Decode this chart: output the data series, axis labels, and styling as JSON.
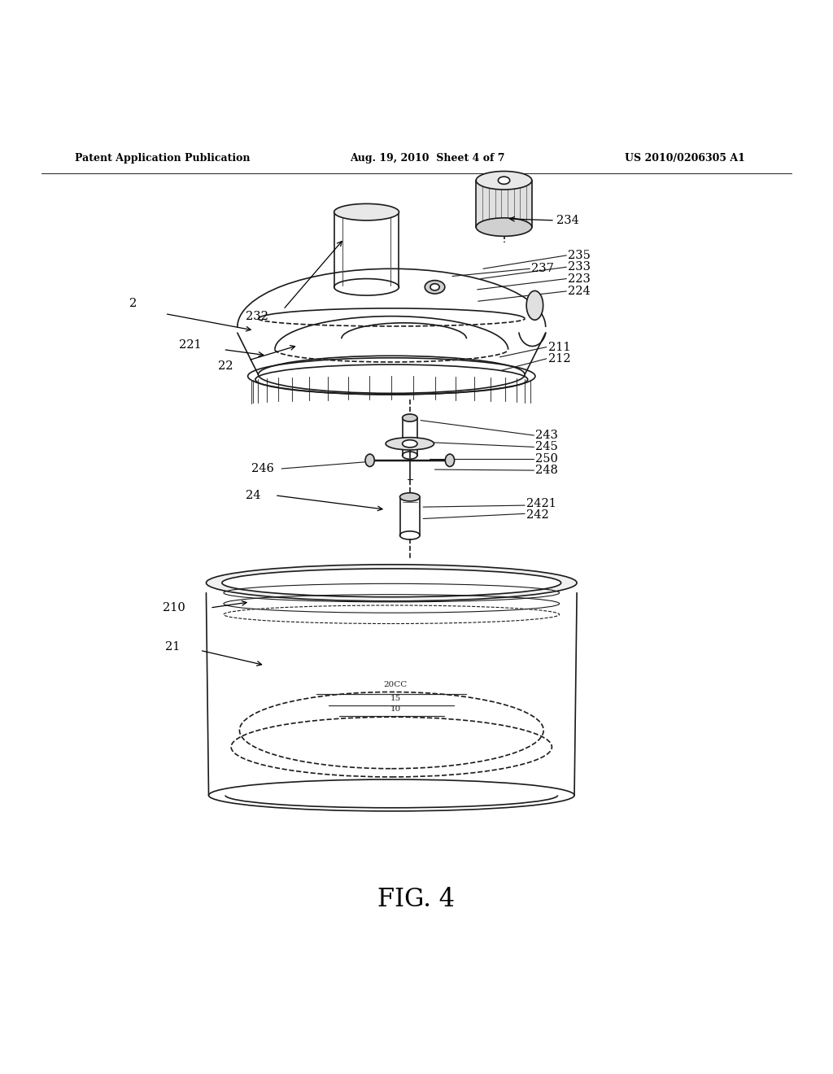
{
  "background_color": "#ffffff",
  "header_left": "Patent Application Publication",
  "header_mid": "Aug. 19, 2010  Sheet 4 of 7",
  "header_right": "US 2010/0206305 A1",
  "figure_caption": "FIG. 4",
  "line_color": "#1a1a1a",
  "text_color": "#000000"
}
